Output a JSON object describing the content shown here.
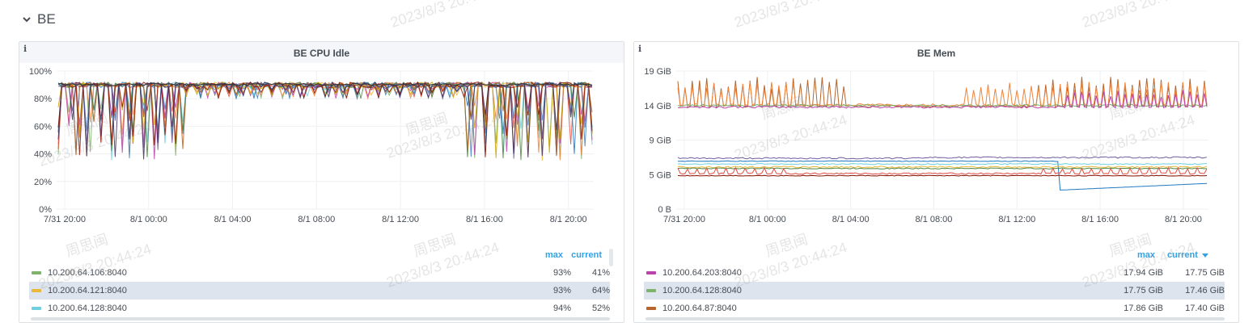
{
  "row": {
    "title": "BE",
    "chevron": "chevron-down-icon"
  },
  "watermark": {
    "name": "周思闽",
    "timestamp": "2023/8/3 20:44:24"
  },
  "panels": [
    {
      "title": "BE CPU Idle",
      "info": "i",
      "y_ticks": [
        "100%",
        "80%",
        "60%",
        "40%",
        "20%",
        "0%"
      ],
      "x_ticks": [
        "7/31 20:00",
        "8/1 00:00",
        "8/1 04:00",
        "8/1 08:00",
        "8/1 12:00",
        "8/1 16:00",
        "8/1 20:00"
      ],
      "legend_headers": {
        "max": "max",
        "current": "current"
      },
      "legend": [
        {
          "name": "10.200.64.106:8040",
          "max": "93%",
          "current": "41%",
          "color": "#7eb26d"
        },
        {
          "name": "10.200.64.121:8040",
          "max": "93%",
          "current": "64%",
          "color": "#eab839"
        },
        {
          "name": "10.200.64.128:8040",
          "max": "94%",
          "current": "52%",
          "color": "#6ed0e0"
        }
      ]
    },
    {
      "title": "BE Mem",
      "info": "i",
      "y_ticks": [
        "19 GiB",
        "14 GiB",
        "9 GiB",
        "5 GiB",
        "0 B"
      ],
      "x_ticks": [
        "7/31 20:00",
        "8/1 00:00",
        "8/1 04:00",
        "8/1 08:00",
        "8/1 12:00",
        "8/1 16:00",
        "8/1 20:00"
      ],
      "legend_headers": {
        "max": "max",
        "current": "current"
      },
      "sort_icon": "caret-down-icon",
      "legend": [
        {
          "name": "10.200.64.203:8040",
          "max": "17.94 GiB",
          "current": "17.75 GiB",
          "color": "#ba43a9"
        },
        {
          "name": "10.200.64.128:8040",
          "max": "17.75 GiB",
          "current": "17.46 GiB",
          "color": "#7eb26d"
        },
        {
          "name": "10.200.64.87:8040",
          "max": "17.86 GiB",
          "current": "17.40 GiB",
          "color": "#b7652a"
        }
      ]
    }
  ]
}
